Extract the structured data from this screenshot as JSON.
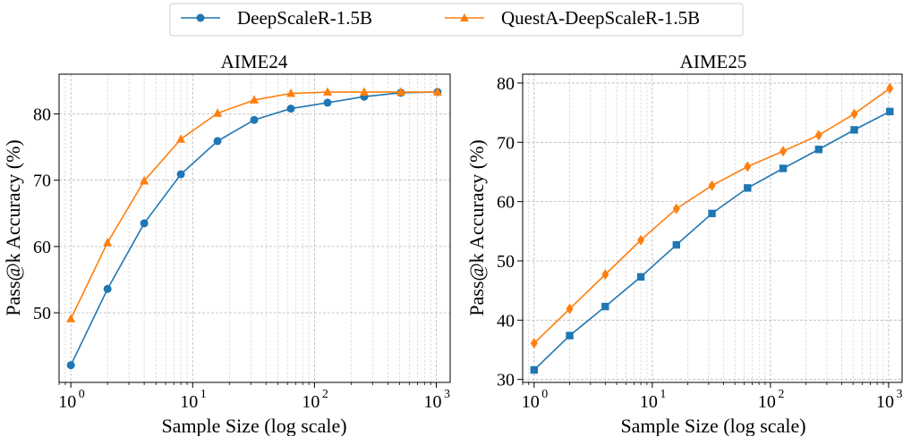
{
  "legend": [
    {
      "name": "DeepScaleR-1.5B",
      "color": "#1f77b4"
    },
    {
      "name": "QuestA-DeepScaleR-1.5B",
      "color": "#ff7f0e"
    }
  ],
  "chart_data": [
    {
      "type": "line",
      "title": "AIME24",
      "xlabel": "Sample Size (log scale)",
      "ylabel": "Pass@k Accuracy (%)",
      "x_scale": "log",
      "xlim": [
        0.8,
        1300
      ],
      "ylim": [
        39.5,
        86
      ],
      "x_ticks": [
        {
          "base": "10",
          "exp": "0",
          "value": 1
        },
        {
          "base": "10",
          "exp": "1",
          "value": 10
        },
        {
          "base": "10",
          "exp": "2",
          "value": 100
        },
        {
          "base": "10",
          "exp": "3",
          "value": 1000
        }
      ],
      "y_ticks": [
        50,
        60,
        70,
        80
      ],
      "grid": true,
      "x": [
        1,
        2,
        4,
        8,
        16,
        32,
        64,
        128,
        256,
        512,
        1024
      ],
      "series": [
        {
          "name": "DeepScaleR-1.5B",
          "color": "#1f77b4",
          "marker": "circle",
          "values": [
            42.1,
            53.6,
            63.5,
            70.9,
            75.9,
            79.1,
            80.8,
            81.7,
            82.6,
            83.2,
            83.3
          ]
        },
        {
          "name": "QuestA-DeepScaleR-1.5B",
          "color": "#ff7f0e",
          "marker": "triangle",
          "values": [
            49.1,
            60.6,
            69.9,
            76.2,
            80.1,
            82.1,
            83.1,
            83.3,
            83.3,
            83.3,
            83.3
          ]
        }
      ]
    },
    {
      "type": "line",
      "title": "AIME25",
      "xlabel": "Sample Size (log scale)",
      "ylabel": "Pass@k Accuracy (%)",
      "x_scale": "log",
      "xlim": [
        0.8,
        1300
      ],
      "ylim": [
        29.5,
        81.5
      ],
      "x_ticks": [
        {
          "base": "10",
          "exp": "0",
          "value": 1
        },
        {
          "base": "10",
          "exp": "1",
          "value": 10
        },
        {
          "base": "10",
          "exp": "2",
          "value": 100
        },
        {
          "base": "10",
          "exp": "3",
          "value": 1000
        }
      ],
      "y_ticks": [
        30,
        40,
        50,
        60,
        70,
        80
      ],
      "grid": true,
      "x": [
        1,
        2,
        4,
        8,
        16,
        32,
        64,
        128,
        256,
        512,
        1024
      ],
      "series": [
        {
          "name": "DeepScaleR-1.5B",
          "color": "#1f77b4",
          "marker": "square",
          "values": [
            31.6,
            37.4,
            42.3,
            47.3,
            52.7,
            58.0,
            62.3,
            65.6,
            68.8,
            72.1,
            75.2
          ]
        },
        {
          "name": "QuestA-DeepScaleR-1.5B",
          "color": "#ff7f0e",
          "marker": "diamond",
          "values": [
            36.1,
            41.9,
            47.7,
            53.5,
            58.8,
            62.7,
            65.9,
            68.5,
            71.2,
            74.8,
            79.1
          ]
        }
      ]
    }
  ]
}
